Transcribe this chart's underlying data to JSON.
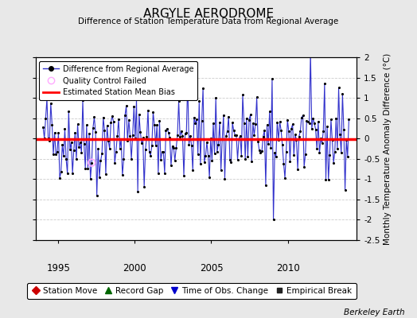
{
  "title": "ARGYLE AERODROME",
  "subtitle": "Difference of Station Temperature Data from Regional Average",
  "ylabel": "Monthly Temperature Anomaly Difference (°C)",
  "xlim": [
    1993.5,
    2014.5
  ],
  "ylim": [
    -2.5,
    2.0
  ],
  "bias": -0.02,
  "background_color": "#e8e8e8",
  "plot_bg_color": "#ffffff",
  "line_color": "#3333cc",
  "bias_color": "#ff0000",
  "marker_color": "#000000",
  "qc_color": "#ffaaff",
  "station_move_color": "#cc0000",
  "record_gap_color": "#006600",
  "obs_change_color": "#0000cc",
  "empirical_break_color": "#222222",
  "x_ticks": [
    1995,
    2000,
    2005,
    2010
  ],
  "y_ticks": [
    -2.5,
    -2.0,
    -1.5,
    -1.0,
    -0.5,
    0.0,
    0.5,
    1.0,
    1.5,
    2.0
  ],
  "seed": 42,
  "n_points": 240,
  "start_year": 1994.0,
  "berkeley_earth_text": "Berkeley Earth",
  "legend1_entries": [
    "Difference from Regional Average",
    "Quality Control Failed",
    "Estimated Station Mean Bias"
  ],
  "legend2_entries": [
    "Station Move",
    "Record Gap",
    "Time of Obs. Change",
    "Empirical Break"
  ]
}
